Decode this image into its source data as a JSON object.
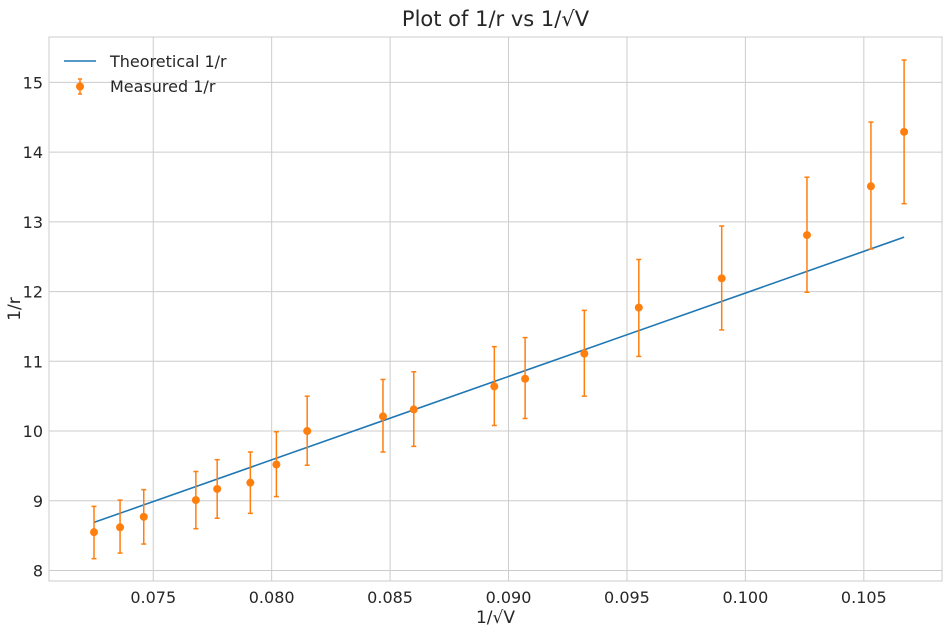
{
  "chart_data": {
    "type": "line",
    "title": "Plot of 1/r vs 1/√V",
    "xlabel": "1/√V",
    "ylabel": "1/r",
    "xlim": [
      0.0706,
      0.1083
    ],
    "ylim": [
      7.85,
      15.65
    ],
    "x_ticks": [
      0.075,
      0.08,
      0.085,
      0.09,
      0.095,
      0.1,
      0.105
    ],
    "x_tick_labels": [
      "0.075",
      "0.080",
      "0.085",
      "0.090",
      "0.095",
      "0.100",
      "0.105"
    ],
    "y_ticks": [
      8,
      9,
      10,
      11,
      12,
      13,
      14,
      15
    ],
    "y_tick_labels": [
      "8",
      "9",
      "10",
      "11",
      "12",
      "13",
      "14",
      "15"
    ],
    "grid": true,
    "legend_position": "top-left",
    "colors": {
      "theoretical": "#1f77b4",
      "measured": "#ff7f0e"
    },
    "series": [
      {
        "name": "Theoretical 1/r",
        "kind": "line",
        "x": [
          0.0725,
          0.1067
        ],
        "y": [
          8.69,
          12.78
        ]
      },
      {
        "name": "Measured 1/r",
        "kind": "errorbar",
        "points": [
          {
            "x": 0.0725,
            "y": 8.55,
            "lo": 8.17,
            "hi": 8.92
          },
          {
            "x": 0.0736,
            "y": 8.62,
            "lo": 8.25,
            "hi": 9.01
          },
          {
            "x": 0.0746,
            "y": 8.77,
            "lo": 8.38,
            "hi": 9.16
          },
          {
            "x": 0.0768,
            "y": 9.01,
            "lo": 8.6,
            "hi": 9.42
          },
          {
            "x": 0.0777,
            "y": 9.17,
            "lo": 8.75,
            "hi": 9.59
          },
          {
            "x": 0.0791,
            "y": 9.26,
            "lo": 8.82,
            "hi": 9.7
          },
          {
            "x": 0.0802,
            "y": 9.52,
            "lo": 9.06,
            "hi": 9.99
          },
          {
            "x": 0.0815,
            "y": 10.0,
            "lo": 9.51,
            "hi": 10.5
          },
          {
            "x": 0.0847,
            "y": 10.21,
            "lo": 9.7,
            "hi": 10.74
          },
          {
            "x": 0.086,
            "y": 10.31,
            "lo": 9.78,
            "hi": 10.85
          },
          {
            "x": 0.0894,
            "y": 10.64,
            "lo": 10.08,
            "hi": 11.21
          },
          {
            "x": 0.0907,
            "y": 10.75,
            "lo": 10.18,
            "hi": 11.34
          },
          {
            "x": 0.0932,
            "y": 11.11,
            "lo": 10.5,
            "hi": 11.73
          },
          {
            "x": 0.0955,
            "y": 11.77,
            "lo": 11.07,
            "hi": 12.46
          },
          {
            "x": 0.099,
            "y": 12.19,
            "lo": 11.45,
            "hi": 12.94
          },
          {
            "x": 0.1026,
            "y": 12.81,
            "lo": 11.99,
            "hi": 13.64
          },
          {
            "x": 0.1053,
            "y": 13.51,
            "lo": 12.61,
            "hi": 14.43
          },
          {
            "x": 0.1067,
            "y": 14.29,
            "lo": 13.26,
            "hi": 15.32
          }
        ]
      }
    ]
  }
}
